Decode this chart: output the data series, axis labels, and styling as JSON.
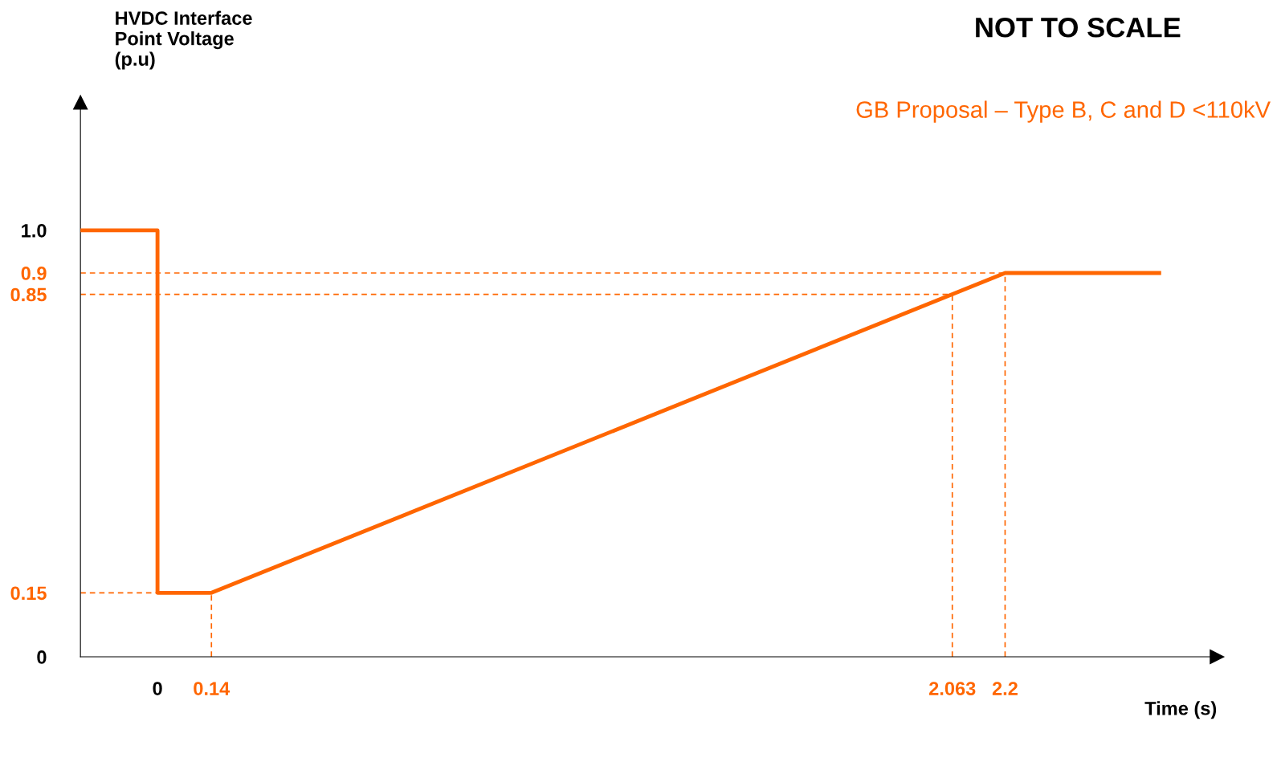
{
  "chart_data": {
    "type": "line",
    "ylabel": "HVDC Interface Point Voltage (p.u)",
    "xlabel": "Time (s)",
    "annotations": [
      "NOT TO SCALE",
      "GB Proposal – Type B, C and D <110kV"
    ],
    "series": [
      {
        "color": "#ff6600",
        "x": [
          -0.2,
          0,
          0,
          0.14,
          2.2,
          2.6
        ],
        "values": [
          1.0,
          1.0,
          0.15,
          0.15,
          0.9,
          0.9
        ]
      }
    ],
    "xlim": [
      -0.2,
      2.75
    ],
    "ylim": [
      0,
      1.3
    ],
    "xticks": [
      0,
      0.14,
      2.063,
      2.2
    ],
    "yticks": [
      0,
      0.15,
      0.85,
      0.9,
      {
        "value": 1.0,
        "label": "1.0"
      }
    ],
    "ref_lines": [
      {
        "axis": "y",
        "value": 0.9,
        "color": "#ff6600",
        "line_style": "dashed"
      },
      {
        "axis": "y",
        "value": 0.85,
        "color": "#ff6600",
        "line_style": "dashed"
      },
      {
        "axis": "y",
        "value": 0.15,
        "color": "#ff6600",
        "line_style": "dashed"
      },
      {
        "axis": "x",
        "value": 0.14,
        "color": "#ff6600",
        "line_style": "dashed"
      },
      {
        "axis": "x",
        "value": 2.063,
        "color": "#ff6600",
        "line_style": "dashed"
      },
      {
        "axis": "x",
        "value": 2.2,
        "color": "#ff6600",
        "line_style": "dashed"
      }
    ],
    "grid": false,
    "legend": false,
    "marker": "none",
    "line_style": "solid"
  }
}
